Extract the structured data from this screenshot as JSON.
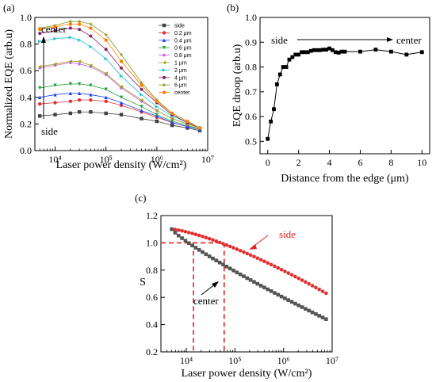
{
  "chart_data": [
    {
      "panel": "(a)",
      "type": "line",
      "xlabel": "Laser power density (W/cm²)",
      "ylabel": "Normalized EQE (arb.u)",
      "xscale": "log",
      "xlim": [
        4000,
        10000000
      ],
      "ylim": [
        0,
        1.0
      ],
      "xticks": [
        10000,
        100000,
        1000000,
        10000000
      ],
      "xticklabels": [
        "10⁴",
        "10⁵",
        "10⁶",
        "10⁷"
      ],
      "yticks": [
        0.0,
        0.2,
        0.4,
        0.6,
        0.8,
        1.0
      ],
      "yticklabels": [
        "0.0",
        "0.2",
        "0.4",
        "0.6",
        "0.8",
        "1.0"
      ],
      "legend": "top-right",
      "annotations": [
        "center",
        "side"
      ],
      "x": [
        5000,
        10000,
        20000,
        30000,
        50000,
        100000,
        200000,
        500000,
        1000000,
        2000000,
        4000000,
        7000000
      ],
      "series": [
        {
          "name": "side",
          "color": "#404040",
          "marker": "square",
          "values": [
            0.26,
            0.27,
            0.28,
            0.29,
            0.29,
            0.28,
            0.27,
            0.24,
            0.22,
            0.19,
            0.17,
            0.15
          ]
        },
        {
          "name": "0.2 μm",
          "color": "#e03030",
          "marker": "circle",
          "values": [
            0.35,
            0.36,
            0.37,
            0.38,
            0.38,
            0.37,
            0.34,
            0.29,
            0.25,
            0.21,
            0.18,
            0.16
          ]
        },
        {
          "name": "0.4 μm",
          "color": "#2040ff",
          "marker": "triangle-up",
          "values": [
            0.4,
            0.42,
            0.43,
            0.43,
            0.42,
            0.4,
            0.36,
            0.3,
            0.26,
            0.21,
            0.18,
            0.16
          ]
        },
        {
          "name": "0.6 μm",
          "color": "#20a040",
          "marker": "triangle-down",
          "values": [
            0.47,
            0.49,
            0.5,
            0.5,
            0.49,
            0.46,
            0.4,
            0.33,
            0.27,
            0.22,
            0.19,
            0.16
          ]
        },
        {
          "name": "0.8 μm",
          "color": "#c060e0",
          "marker": "diamond",
          "values": [
            0.62,
            0.64,
            0.66,
            0.65,
            0.63,
            0.57,
            0.47,
            0.37,
            0.3,
            0.24,
            0.2,
            0.17
          ]
        },
        {
          "name": "1 μm",
          "color": "#a0a020",
          "marker": "triangle-left",
          "values": [
            0.63,
            0.65,
            0.67,
            0.67,
            0.64,
            0.58,
            0.48,
            0.38,
            0.3,
            0.24,
            0.2,
            0.17
          ]
        },
        {
          "name": "2 μm",
          "color": "#20c0d0",
          "marker": "triangle-right",
          "values": [
            0.82,
            0.84,
            0.85,
            0.83,
            0.78,
            0.69,
            0.56,
            0.42,
            0.33,
            0.26,
            0.21,
            0.17
          ]
        },
        {
          "name": "4 μm",
          "color": "#802060",
          "marker": "hexagon",
          "values": [
            0.88,
            0.9,
            0.92,
            0.91,
            0.86,
            0.76,
            0.62,
            0.46,
            0.36,
            0.27,
            0.21,
            0.17
          ]
        },
        {
          "name": "6 μm",
          "color": "#909020",
          "marker": "star",
          "values": [
            0.92,
            0.94,
            0.97,
            0.97,
            0.95,
            0.87,
            0.72,
            0.51,
            0.38,
            0.28,
            0.22,
            0.17
          ]
        },
        {
          "name": "center",
          "color": "#ff7f00",
          "marker": "circle",
          "values": [
            0.91,
            0.93,
            0.95,
            0.95,
            0.92,
            0.83,
            0.67,
            0.49,
            0.37,
            0.28,
            0.22,
            0.17
          ]
        }
      ]
    },
    {
      "panel": "(b)",
      "type": "line",
      "xlabel": "Distance from the edge (μm)",
      "ylabel": "EQE droop (arb.u)",
      "xlim": [
        -0.5,
        10.5
      ],
      "ylim": [
        0.45,
        1.0
      ],
      "xticks": [
        0,
        2,
        4,
        6,
        8,
        10
      ],
      "xticklabels": [
        "0",
        "2",
        "4",
        "6",
        "8",
        "10"
      ],
      "yticks": [
        0.5,
        0.6,
        0.7,
        0.8,
        0.9,
        1.0
      ],
      "yticklabels": [
        "0.5",
        "0.6",
        "0.7",
        "0.8",
        "0.9",
        "1.0"
      ],
      "annotations": [
        "side",
        "center"
      ],
      "series": [
        {
          "color": "#000000",
          "marker": "square",
          "x": [
            0,
            0.2,
            0.4,
            0.6,
            0.8,
            1.0,
            1.2,
            1.4,
            1.6,
            1.8,
            2.0,
            2.2,
            2.4,
            2.6,
            2.8,
            3.0,
            3.2,
            3.4,
            3.6,
            3.8,
            4.0,
            4.2,
            4.4,
            4.6,
            4.8,
            5.0,
            6.0,
            7.0,
            8.0,
            9.0,
            10.0
          ],
          "y": [
            0.51,
            0.58,
            0.63,
            0.73,
            0.77,
            0.8,
            0.8,
            0.83,
            0.84,
            0.85,
            0.85,
            0.86,
            0.86,
            0.86,
            0.865,
            0.868,
            0.868,
            0.868,
            0.87,
            0.87,
            0.875,
            0.868,
            0.86,
            0.858,
            0.862,
            0.862,
            0.862,
            0.87,
            0.862,
            0.85,
            0.86
          ]
        }
      ]
    },
    {
      "panel": "(c)",
      "type": "scatter",
      "xlabel": "Laser power density (W/cm²)",
      "ylabel": "S",
      "xscale": "log",
      "xlim": [
        3000,
        10000000
      ],
      "ylim": [
        0.2,
        1.2
      ],
      "xticks": [
        10000,
        100000,
        1000000,
        10000000
      ],
      "xticklabels": [
        "10⁴",
        "10⁵",
        "10⁶",
        "10⁷"
      ],
      "yticks": [
        0.2,
        0.4,
        0.6,
        0.8,
        1.0,
        1.2
      ],
      "yticklabels": [
        "0.2",
        "0.4",
        "0.6",
        "0.8",
        "1.0",
        "1.2"
      ],
      "annotations": [
        "side",
        "center"
      ],
      "reference_lines": {
        "y": 1.0,
        "x": [
          14000,
          60000
        ],
        "color": "#e02020"
      },
      "series": [
        {
          "name": "side",
          "color": "#e03030",
          "marker": "circle",
          "x_range": [
            5000,
            7500000
          ],
          "y_start": 1.1,
          "y_end": 0.63
        },
        {
          "name": "center",
          "color": "#555555",
          "marker": "square",
          "x_range": [
            5000,
            7500000
          ],
          "y_start": 1.1,
          "y_end": 0.44
        }
      ]
    }
  ]
}
